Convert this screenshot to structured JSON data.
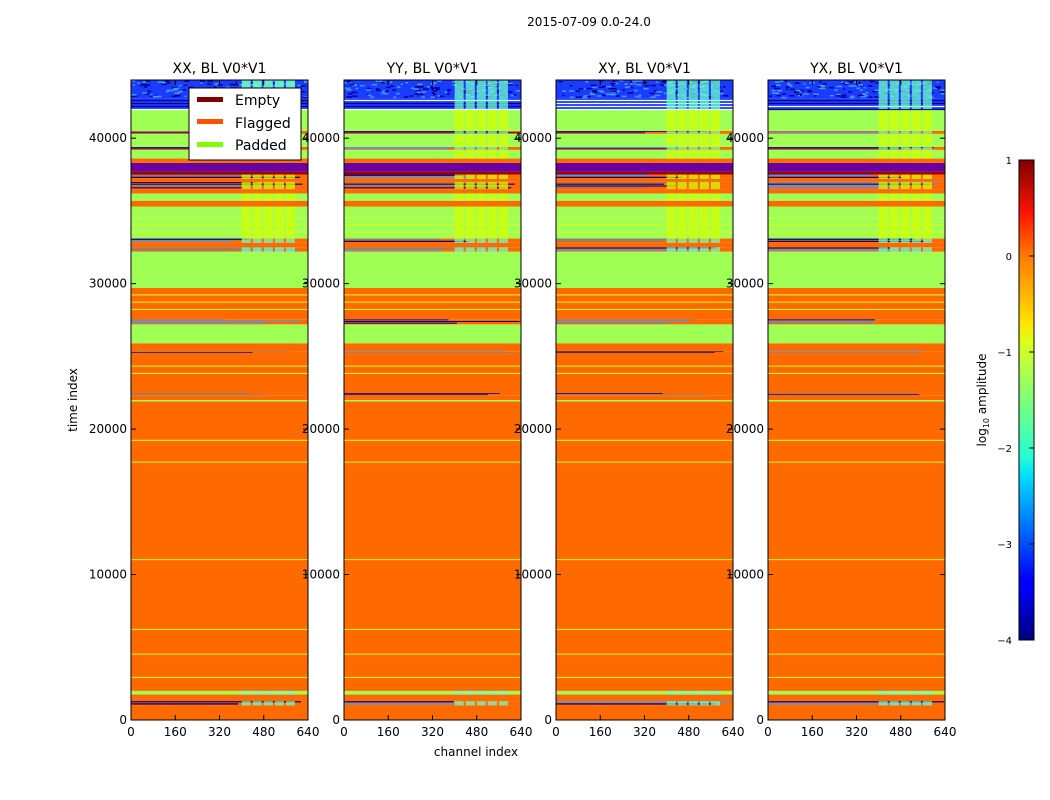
{
  "chart_data": {
    "type": "heatmap",
    "title": "2015-07-09 0.0-24.0",
    "xlabel": "channel index",
    "ylabel": "time index",
    "xlim": [
      0,
      640
    ],
    "ylim": [
      0,
      44000
    ],
    "x_ticks": [
      0,
      160,
      320,
      480,
      640
    ],
    "x_tick_labels": [
      "0",
      "160",
      "320",
      "480",
      "640"
    ],
    "y_ticks": [
      0,
      10000,
      20000,
      30000,
      40000
    ],
    "y_tick_labels": [
      "0",
      "10000",
      "20000",
      "30000",
      "40000"
    ],
    "colorbar": {
      "label": "log10 amplitude",
      "label_base": "log",
      "label_sub": "10",
      "label_rest": " amplitude",
      "range": [
        -4,
        1
      ],
      "ticks": [
        1,
        0,
        -1,
        -2,
        -3,
        -4
      ],
      "tick_labels": [
        "1",
        "0",
        "−1",
        "−2",
        "−3",
        "−4"
      ],
      "colormap": "jet"
    },
    "legend": {
      "location": "upper-left of first panel",
      "entries": [
        {
          "label": "Empty",
          "color": "#800000"
        },
        {
          "label": "Flagged",
          "color": "#ff5000"
        },
        {
          "label": "Padded",
          "color": "#7fff00"
        }
      ]
    },
    "panels": [
      {
        "title": "XX, BL V0*V1"
      },
      {
        "title": "YY, BL V0*V1"
      },
      {
        "title": "XY, BL V0*V1"
      },
      {
        "title": "YX, BL V0*V1"
      }
    ],
    "colors": {
      "flagged_fill": "#ff6a00",
      "padded_fill": "#9fff55",
      "thin_yellow": "#d2ff00",
      "noise_dark": "#00008f",
      "noise_mid": "#1a3cff",
      "noise_light": "#3f9cff",
      "data_cyan": "#6effc8",
      "dark_red": "#a00000",
      "purple": "#6a00a0"
    },
    "bands": [
      {
        "from": 0,
        "to": 1000,
        "kind": "flagged"
      },
      {
        "from": 1000,
        "to": 1300,
        "kind": "mixed"
      },
      {
        "from": 1300,
        "to": 1750,
        "kind": "flagged"
      },
      {
        "from": 1750,
        "to": 2000,
        "kind": "padded"
      },
      {
        "from": 2000,
        "to": 2900,
        "kind": "flagged"
      },
      {
        "from": 2900,
        "to": 2960,
        "kind": "thin"
      },
      {
        "from": 2960,
        "to": 4500,
        "kind": "flagged"
      },
      {
        "from": 4500,
        "to": 4560,
        "kind": "thin"
      },
      {
        "from": 4560,
        "to": 6200,
        "kind": "flagged"
      },
      {
        "from": 6200,
        "to": 6260,
        "kind": "thin"
      },
      {
        "from": 6260,
        "to": 11000,
        "kind": "flagged"
      },
      {
        "from": 11000,
        "to": 11060,
        "kind": "thin"
      },
      {
        "from": 11060,
        "to": 17700,
        "kind": "flagged"
      },
      {
        "from": 17700,
        "to": 17760,
        "kind": "thin"
      },
      {
        "from": 17760,
        "to": 19200,
        "kind": "flagged"
      },
      {
        "from": 19200,
        "to": 19260,
        "kind": "thin"
      },
      {
        "from": 19260,
        "to": 21900,
        "kind": "flagged"
      },
      {
        "from": 21900,
        "to": 22000,
        "kind": "padded"
      },
      {
        "from": 22000,
        "to": 22300,
        "kind": "flagged"
      },
      {
        "from": 22300,
        "to": 22480,
        "kind": "mixed"
      },
      {
        "from": 22480,
        "to": 23800,
        "kind": "flagged"
      },
      {
        "from": 23800,
        "to": 23860,
        "kind": "thin"
      },
      {
        "from": 23860,
        "to": 24300,
        "kind": "flagged"
      },
      {
        "from": 24300,
        "to": 24360,
        "kind": "thin"
      },
      {
        "from": 24360,
        "to": 25200,
        "kind": "flagged"
      },
      {
        "from": 25200,
        "to": 25350,
        "kind": "mixed"
      },
      {
        "from": 25350,
        "to": 25900,
        "kind": "flagged"
      },
      {
        "from": 25900,
        "to": 27200,
        "kind": "padded"
      },
      {
        "from": 27200,
        "to": 27550,
        "kind": "mixed"
      },
      {
        "from": 27550,
        "to": 28200,
        "kind": "flagged"
      },
      {
        "from": 28200,
        "to": 28260,
        "kind": "thin"
      },
      {
        "from": 28260,
        "to": 28700,
        "kind": "flagged"
      },
      {
        "from": 28700,
        "to": 28760,
        "kind": "thin"
      },
      {
        "from": 28760,
        "to": 29200,
        "kind": "flagged"
      },
      {
        "from": 29200,
        "to": 29260,
        "kind": "thin"
      },
      {
        "from": 29260,
        "to": 29700,
        "kind": "flagged"
      },
      {
        "from": 29700,
        "to": 32200,
        "kind": "padded"
      },
      {
        "from": 32200,
        "to": 32500,
        "kind": "mixed"
      },
      {
        "from": 32500,
        "to": 32800,
        "kind": "flagged"
      },
      {
        "from": 32800,
        "to": 33100,
        "kind": "mixed"
      },
      {
        "from": 33100,
        "to": 33500,
        "kind": "padded"
      },
      {
        "from": 33500,
        "to": 33560,
        "kind": "thin"
      },
      {
        "from": 33560,
        "to": 34000,
        "kind": "padded"
      },
      {
        "from": 34000,
        "to": 34060,
        "kind": "thin"
      },
      {
        "from": 34060,
        "to": 34500,
        "kind": "padded"
      },
      {
        "from": 34500,
        "to": 34560,
        "kind": "thin"
      },
      {
        "from": 34560,
        "to": 35300,
        "kind": "padded"
      },
      {
        "from": 35300,
        "to": 35700,
        "kind": "flagged"
      },
      {
        "from": 35700,
        "to": 36200,
        "kind": "padded"
      },
      {
        "from": 36200,
        "to": 36500,
        "kind": "flagged"
      },
      {
        "from": 36500,
        "to": 37000,
        "kind": "mixed"
      },
      {
        "from": 37000,
        "to": 37200,
        "kind": "flagged"
      },
      {
        "from": 37200,
        "to": 37500,
        "kind": "mixed"
      },
      {
        "from": 37500,
        "to": 37700,
        "kind": "darkred"
      },
      {
        "from": 37700,
        "to": 38300,
        "kind": "purple"
      },
      {
        "from": 38300,
        "to": 38600,
        "kind": "flagged"
      },
      {
        "from": 38600,
        "to": 39200,
        "kind": "padded"
      },
      {
        "from": 39200,
        "to": 39400,
        "kind": "mixed"
      },
      {
        "from": 39400,
        "to": 40300,
        "kind": "padded"
      },
      {
        "from": 40300,
        "to": 40500,
        "kind": "mixed"
      },
      {
        "from": 40500,
        "to": 42000,
        "kind": "padded"
      },
      {
        "from": 42000,
        "to": 42700,
        "kind": "stripes"
      },
      {
        "from": 42700,
        "to": 44000,
        "kind": "noise"
      }
    ],
    "active_channels": [
      400,
      600
    ]
  }
}
